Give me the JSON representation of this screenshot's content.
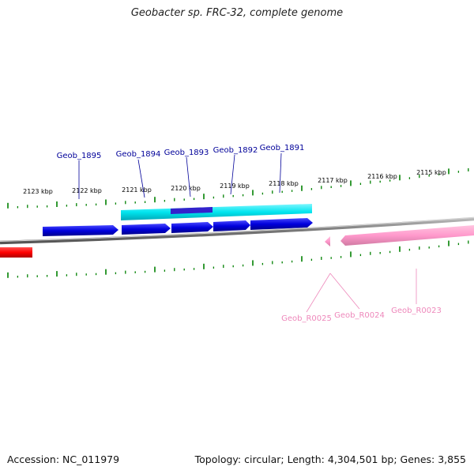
{
  "header": {
    "title": "Geobacter sp. FRC-32, complete genome"
  },
  "footer": {
    "accession": "Accession: NC_011979",
    "topology": "Topology: circular; Length: 4,304,501 bp; Genes: 3,855"
  },
  "scale_labels": [
    "2123 kbp",
    "2122 kbp",
    "2121 kbp",
    "2120 kbp",
    "2119 kbp",
    "2118 kbp",
    "2117 kbp",
    "2116 kbp",
    "2115 kbp"
  ],
  "genes_top": [
    "Geob_1895",
    "Geob_1894",
    "Geob_1893",
    "Geob_1892",
    "Geob_1891"
  ],
  "genes_bottom": [
    "Geob_R0025",
    "Geob_R0024",
    "Geob_R0023"
  ],
  "colors": {
    "cds_forward": "#0000dd",
    "cds_highlight": "#00e5ee",
    "cds_highlight_inner": "#3322cc",
    "rna": "#ff99cc",
    "other": "#ff0000",
    "backbone": "#888888",
    "tick": "#008000",
    "label_blue": "#000099",
    "label_pink": "#ee88bb"
  }
}
